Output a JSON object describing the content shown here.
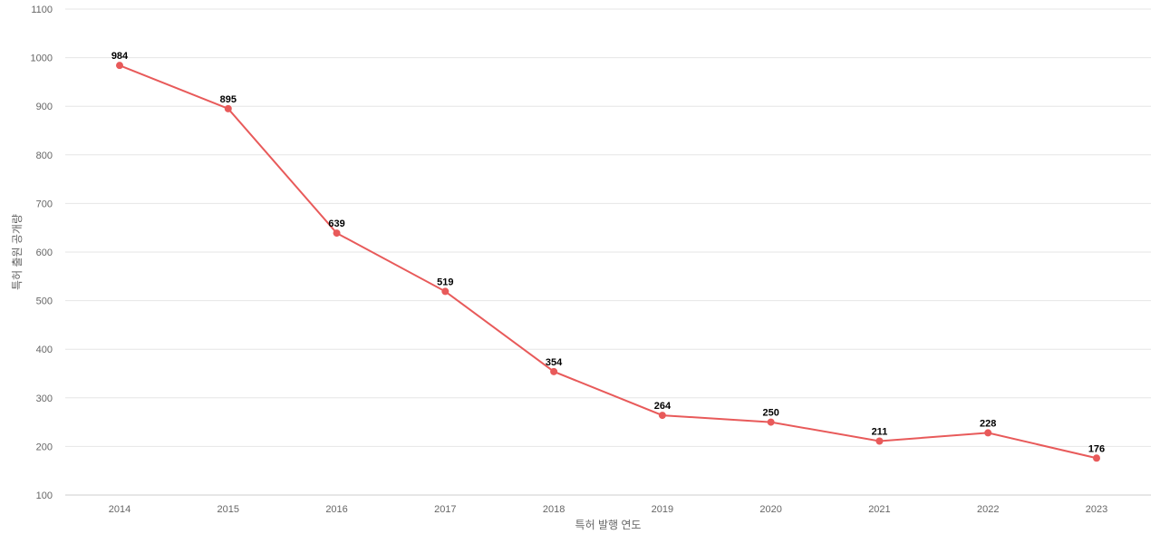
{
  "chart_data": {
    "type": "line",
    "title": "",
    "xlabel": "특허 발행 연도",
    "ylabel": "특허 출원 공개량",
    "categories": [
      "2014",
      "2015",
      "2016",
      "2017",
      "2018",
      "2019",
      "2020",
      "2021",
      "2022",
      "2023"
    ],
    "series": [
      {
        "values": [
          984,
          895,
          639,
          519,
          354,
          264,
          250,
          211,
          228,
          176
        ]
      }
    ],
    "ylim": [
      100,
      1100
    ],
    "yticks": [
      100,
      200,
      300,
      400,
      500,
      600,
      700,
      800,
      900,
      1000,
      1100
    ],
    "grid": true,
    "data_labels": true,
    "line_color": "#e85a5a"
  }
}
